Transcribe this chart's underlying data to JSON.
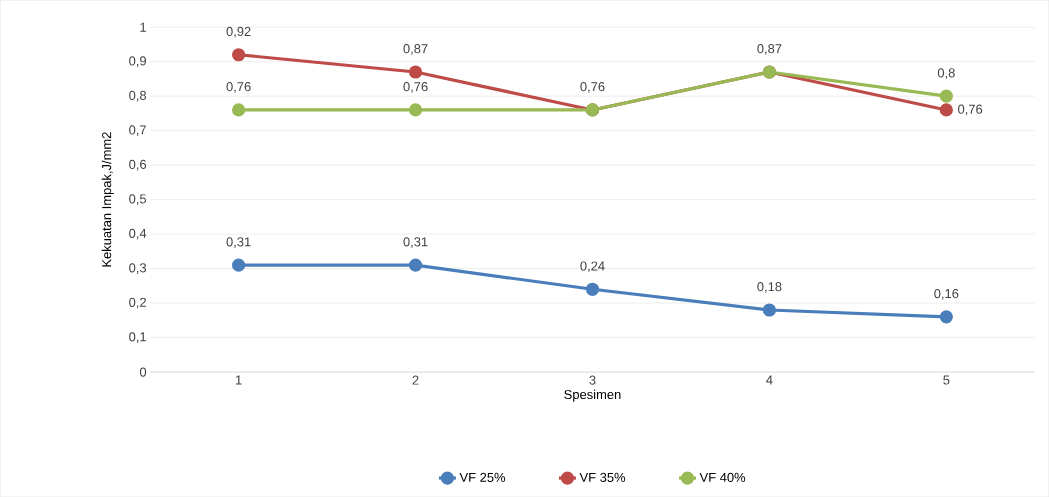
{
  "chart_data": {
    "type": "line",
    "xlabel": "Spesimen",
    "ylabel": "Kekuatan Impak,J/mm2",
    "categories": [
      "1",
      "2",
      "3",
      "4",
      "5"
    ],
    "series": [
      {
        "name": "VF 25%",
        "color": "#4a7ebb",
        "values": [
          0.31,
          0.31,
          0.24,
          0.18,
          0.16
        ],
        "value_labels": [
          "0,31",
          "0,31",
          "0,24",
          "0,18",
          "0,16"
        ]
      },
      {
        "name": "VF 35%",
        "color": "#be4b48",
        "values": [
          0.92,
          0.87,
          0.76,
          0.87,
          0.76
        ],
        "value_labels": [
          "0,92",
          "0,87",
          null,
          null,
          "0,76"
        ]
      },
      {
        "name": "VF 40%",
        "color": "#98b954",
        "values": [
          0.76,
          0.76,
          0.76,
          0.87,
          0.8
        ],
        "value_labels": [
          "0,76",
          "0,76",
          "0,76",
          "0,87",
          "0,8"
        ]
      }
    ],
    "ylim": [
      0,
      1
    ],
    "yticks": [
      {
        "value": 0,
        "label": "0"
      },
      {
        "value": 0.1,
        "label": "0,1"
      },
      {
        "value": 0.2,
        "label": "0,2"
      },
      {
        "value": 0.3,
        "label": "0,3"
      },
      {
        "value": 0.4,
        "label": "0,4"
      },
      {
        "value": 0.5,
        "label": "0,5"
      },
      {
        "value": 0.6,
        "label": "0,6"
      },
      {
        "value": 0.7,
        "label": "0,7"
      },
      {
        "value": 0.8,
        "label": "0,8"
      },
      {
        "value": 0.9,
        "label": "0,9"
      },
      {
        "value": 1,
        "label": "1"
      }
    ],
    "grid": "y",
    "legend": "bottom",
    "marker": "circle",
    "line_style": "solid"
  }
}
